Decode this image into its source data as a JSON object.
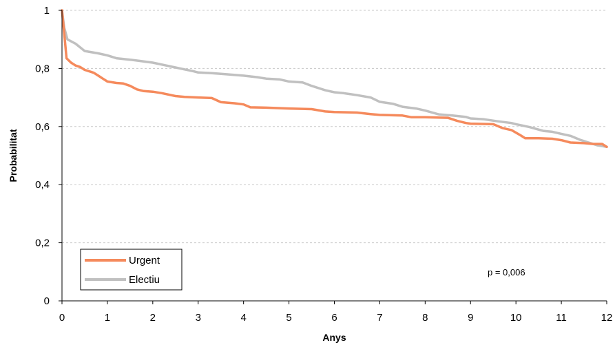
{
  "chart_data": {
    "type": "line",
    "title": "",
    "xlabel": "Anys",
    "ylabel": "Probabilitat",
    "xlim": [
      0,
      12
    ],
    "ylim": [
      0,
      1
    ],
    "grid": "horizontal dashed",
    "legend_placement": "bottom-left",
    "x_ticks": [
      "0",
      "1",
      "2",
      "3",
      "4",
      "5",
      "6",
      "7",
      "8",
      "9",
      "10",
      "11",
      "12"
    ],
    "y_ticks": [
      "0",
      "0,2",
      "0,4",
      "0,6",
      "0,8",
      "1"
    ],
    "annotation": "p = 0,006",
    "series": [
      {
        "name": "Urgent",
        "color": "#f58a5c",
        "points": [
          [
            0,
            1.0
          ],
          [
            0.05,
            0.92
          ],
          [
            0.1,
            0.835
          ],
          [
            0.2,
            0.82
          ],
          [
            0.3,
            0.81
          ],
          [
            0.4,
            0.805
          ],
          [
            0.5,
            0.795
          ],
          [
            0.6,
            0.79
          ],
          [
            0.7,
            0.785
          ],
          [
            0.8,
            0.775
          ],
          [
            0.9,
            0.765
          ],
          [
            1.0,
            0.755
          ],
          [
            1.2,
            0.75
          ],
          [
            1.35,
            0.748
          ],
          [
            1.5,
            0.74
          ],
          [
            1.65,
            0.728
          ],
          [
            1.8,
            0.722
          ],
          [
            2.0,
            0.72
          ],
          [
            2.2,
            0.715
          ],
          [
            2.5,
            0.705
          ],
          [
            2.7,
            0.702
          ],
          [
            3.0,
            0.7
          ],
          [
            3.3,
            0.698
          ],
          [
            3.5,
            0.684
          ],
          [
            3.8,
            0.68
          ],
          [
            4.0,
            0.676
          ],
          [
            4.15,
            0.666
          ],
          [
            4.5,
            0.665
          ],
          [
            5.0,
            0.662
          ],
          [
            5.5,
            0.66
          ],
          [
            5.8,
            0.652
          ],
          [
            6.0,
            0.65
          ],
          [
            6.5,
            0.648
          ],
          [
            6.8,
            0.643
          ],
          [
            7.0,
            0.64
          ],
          [
            7.5,
            0.638
          ],
          [
            7.7,
            0.632
          ],
          [
            8.0,
            0.632
          ],
          [
            8.5,
            0.63
          ],
          [
            8.7,
            0.62
          ],
          [
            8.9,
            0.612
          ],
          [
            9.0,
            0.61
          ],
          [
            9.5,
            0.608
          ],
          [
            9.7,
            0.595
          ],
          [
            9.9,
            0.588
          ],
          [
            10.1,
            0.57
          ],
          [
            10.2,
            0.56
          ],
          [
            10.5,
            0.56
          ],
          [
            10.8,
            0.558
          ],
          [
            11.0,
            0.553
          ],
          [
            11.2,
            0.545
          ],
          [
            11.5,
            0.543
          ],
          [
            11.7,
            0.54
          ],
          [
            11.9,
            0.54
          ],
          [
            12.0,
            0.53
          ]
        ]
      },
      {
        "name": "Electiu",
        "color": "#c0c0c0",
        "points": [
          [
            0,
            1.0
          ],
          [
            0.05,
            0.94
          ],
          [
            0.12,
            0.9
          ],
          [
            0.3,
            0.885
          ],
          [
            0.5,
            0.86
          ],
          [
            0.8,
            0.852
          ],
          [
            1.0,
            0.845
          ],
          [
            1.2,
            0.835
          ],
          [
            1.5,
            0.83
          ],
          [
            1.7,
            0.826
          ],
          [
            2.0,
            0.82
          ],
          [
            2.3,
            0.81
          ],
          [
            2.6,
            0.8
          ],
          [
            2.9,
            0.79
          ],
          [
            3.0,
            0.786
          ],
          [
            3.3,
            0.784
          ],
          [
            3.6,
            0.78
          ],
          [
            4.0,
            0.775
          ],
          [
            4.3,
            0.77
          ],
          [
            4.5,
            0.765
          ],
          [
            4.8,
            0.762
          ],
          [
            5.0,
            0.755
          ],
          [
            5.3,
            0.752
          ],
          [
            5.5,
            0.74
          ],
          [
            5.8,
            0.725
          ],
          [
            6.0,
            0.718
          ],
          [
            6.2,
            0.715
          ],
          [
            6.5,
            0.708
          ],
          [
            6.8,
            0.7
          ],
          [
            7.0,
            0.685
          ],
          [
            7.3,
            0.678
          ],
          [
            7.5,
            0.668
          ],
          [
            7.8,
            0.662
          ],
          [
            8.0,
            0.655
          ],
          [
            8.3,
            0.642
          ],
          [
            8.6,
            0.638
          ],
          [
            8.9,
            0.633
          ],
          [
            9.0,
            0.628
          ],
          [
            9.3,
            0.625
          ],
          [
            9.6,
            0.618
          ],
          [
            9.9,
            0.612
          ],
          [
            10.0,
            0.608
          ],
          [
            10.3,
            0.598
          ],
          [
            10.6,
            0.585
          ],
          [
            10.8,
            0.582
          ],
          [
            11.0,
            0.575
          ],
          [
            11.2,
            0.568
          ],
          [
            11.4,
            0.555
          ],
          [
            11.6,
            0.545
          ],
          [
            11.8,
            0.535
          ],
          [
            12.0,
            0.53
          ]
        ]
      }
    ]
  }
}
